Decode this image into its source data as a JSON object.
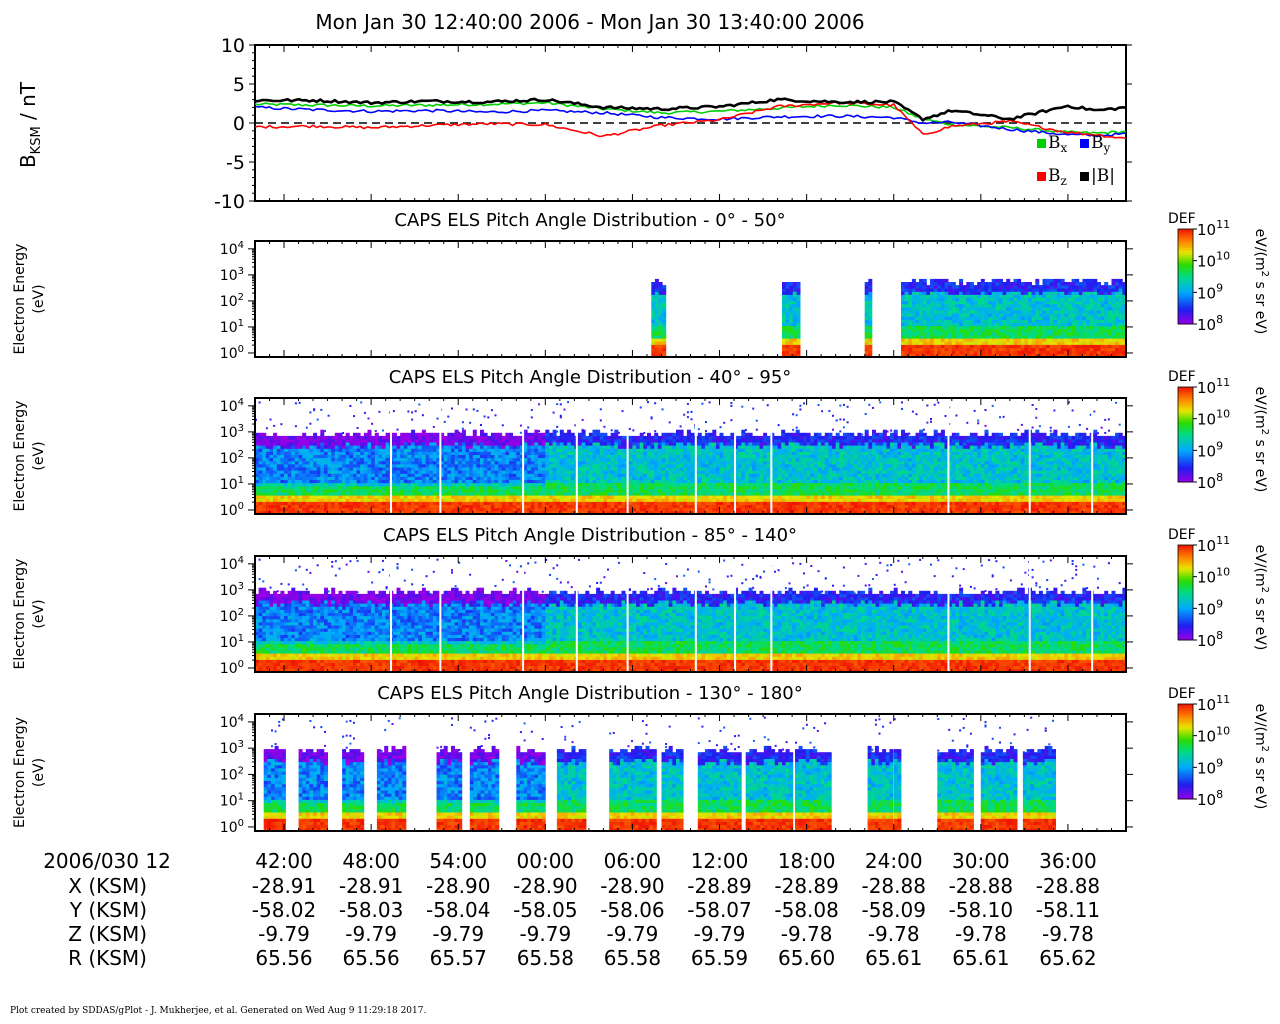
{
  "title": "Mon Jan 30 12:40:00 2006 - Mon Jan 30 13:40:00 2006",
  "footer": "Plot created by SDDAS/gPlot - J. Mukherjee, et al.  Generated on Wed Aug 9 11:29:18 2017.",
  "chart_data": [
    {
      "type": "line",
      "ylabel": "B",
      "ylabel_sub": "KSM",
      "ylabel_unit": " / nT",
      "ylim": [
        -10,
        10
      ],
      "yticks": [
        10,
        5,
        0,
        -5,
        -10
      ],
      "reference_line": 0,
      "x_minutes": [
        0,
        4,
        8,
        12,
        16,
        20,
        24,
        28,
        32,
        36,
        40,
        44,
        46,
        48,
        52,
        56,
        58,
        60
      ],
      "series": [
        {
          "name": "Bx",
          "label_main": "B",
          "label_sub": "x",
          "color": "#00d000",
          "values": [
            2.4,
            2.3,
            2.2,
            2.3,
            2.4,
            2.6,
            1.8,
            1.3,
            1.5,
            1.9,
            2.3,
            2.0,
            0.5,
            -0.2,
            -0.6,
            -1.2,
            -1.3,
            -1.1
          ]
        },
        {
          "name": "By",
          "label_main": "B",
          "label_sub": "y",
          "color": "#0000ff",
          "values": [
            2.0,
            1.7,
            1.5,
            1.6,
            1.4,
            1.6,
            1.3,
            0.7,
            0.5,
            0.8,
            0.9,
            0.7,
            0.0,
            0.1,
            -0.8,
            -1.5,
            -1.6,
            -1.4
          ]
        },
        {
          "name": "Bz",
          "label_main": "B",
          "label_sub": "z",
          "color": "#ff0000",
          "values": [
            -0.5,
            -0.4,
            -0.6,
            -0.3,
            -0.1,
            -0.2,
            -1.7,
            -0.3,
            0.4,
            2.1,
            2.6,
            2.3,
            -1.5,
            -0.4,
            0.2,
            -1.2,
            -1.5,
            -2.0
          ]
        },
        {
          "name": "|B|",
          "label_main": "|B|",
          "label_sub": "",
          "color": "#000000",
          "values": [
            2.9,
            2.9,
            2.6,
            2.8,
            2.7,
            3.0,
            2.0,
            1.8,
            2.1,
            3.0,
            2.7,
            2.7,
            0.5,
            1.6,
            0.5,
            2.2,
            1.6,
            2.0
          ]
        }
      ]
    },
    {
      "type": "heatmap",
      "title": "CAPS ELS Pitch Angle Distribution - 0° - 50°",
      "ylabel": "Electron Energy",
      "yunit": "(eV)",
      "yscale": "log",
      "ylim": [
        0.7,
        20000
      ],
      "yticks_exp": [
        4,
        3,
        2,
        1,
        0
      ],
      "coverage_minutes": [
        [
          27.3,
          28.2
        ],
        [
          36.3,
          37.4
        ],
        [
          42.0,
          42.5
        ],
        [
          44.5,
          60
        ]
      ],
      "energy_top_eV": 400
    },
    {
      "type": "heatmap",
      "title": "CAPS ELS Pitch Angle Distribution - 40° - 95°",
      "ylabel": "Electron Energy",
      "yunit": "(eV)",
      "yscale": "log",
      "ylim": [
        0.7,
        20000
      ],
      "yticks_exp": [
        4,
        3,
        2,
        1,
        0
      ],
      "coverage_minutes": [
        [
          0,
          60
        ]
      ],
      "energy_top_eV": 600
    },
    {
      "type": "heatmap",
      "title": "CAPS ELS Pitch Angle Distribution - 85° - 140°",
      "ylabel": "Electron Energy",
      "yunit": "(eV)",
      "yscale": "log",
      "ylim": [
        0.7,
        20000
      ],
      "yticks_exp": [
        4,
        3,
        2,
        1,
        0
      ],
      "coverage_minutes": [
        [
          0,
          60
        ]
      ],
      "energy_top_eV": 600
    },
    {
      "type": "heatmap",
      "title": "CAPS ELS Pitch Angle Distribution - 130° - 180°",
      "ylabel": "Electron Energy",
      "yunit": "(eV)",
      "yscale": "log",
      "ylim": [
        0.7,
        20000
      ],
      "yticks_exp": [
        4,
        3,
        2,
        1,
        0
      ],
      "coverage_minutes": [
        [
          0.6,
          2.0
        ],
        [
          3.0,
          4.8
        ],
        [
          6.0,
          7.5
        ],
        [
          8.4,
          10.2
        ],
        [
          12.5,
          14.2
        ],
        [
          14.8,
          16.6
        ],
        [
          18.0,
          19.8
        ],
        [
          20.8,
          22.8
        ],
        [
          24.4,
          27.5
        ],
        [
          28.0,
          29.4
        ],
        [
          30.5,
          33.5
        ],
        [
          33.8,
          37.0
        ],
        [
          37.2,
          39.6
        ],
        [
          42.2,
          43.8
        ],
        [
          44.0,
          44.5
        ],
        [
          47.0,
          49.4
        ],
        [
          50.0,
          52.5
        ],
        [
          52.9,
          55.0
        ]
      ],
      "energy_top_eV": 600
    }
  ],
  "colorbar": {
    "label": "DEF",
    "unit_prefix": "eV/(m",
    "unit_sup": "2",
    "unit_suffix": " s sr eV)",
    "range_exp": [
      8,
      11
    ],
    "ticks_exp": [
      11,
      10,
      9,
      8
    ]
  },
  "time_axis": {
    "start_label": "2006/030 12",
    "tick_labels": [
      "42:00",
      "48:00",
      "54:00",
      "00:00",
      "06:00",
      "12:00",
      "18:00",
      "24:00",
      "30:00",
      "36:00"
    ],
    "tick_minutes": [
      2,
      8,
      14,
      20,
      26,
      32,
      38,
      44,
      50,
      56
    ],
    "range_minutes": [
      0,
      60
    ]
  },
  "ephemeris": [
    {
      "label": "X (KSM)",
      "values": [
        "-28.91",
        "-28.91",
        "-28.90",
        "-28.90",
        "-28.90",
        "-28.89",
        "-28.89",
        "-28.88",
        "-28.88",
        "-28.88"
      ]
    },
    {
      "label": "Y (KSM)",
      "values": [
        "-58.02",
        "-58.03",
        "-58.04",
        "-58.05",
        "-58.06",
        "-58.07",
        "-58.08",
        "-58.09",
        "-58.10",
        "-58.11"
      ]
    },
    {
      "label": "Z (KSM)",
      "values": [
        "-9.79",
        "-9.79",
        "-9.79",
        "-9.79",
        "-9.79",
        "-9.79",
        "-9.78",
        "-9.78",
        "-9.78",
        "-9.78"
      ]
    },
    {
      "label": "R (KSM)",
      "values": [
        "65.56",
        "65.56",
        "65.57",
        "65.58",
        "65.58",
        "65.59",
        "65.60",
        "65.61",
        "65.61",
        "65.62"
      ]
    }
  ]
}
